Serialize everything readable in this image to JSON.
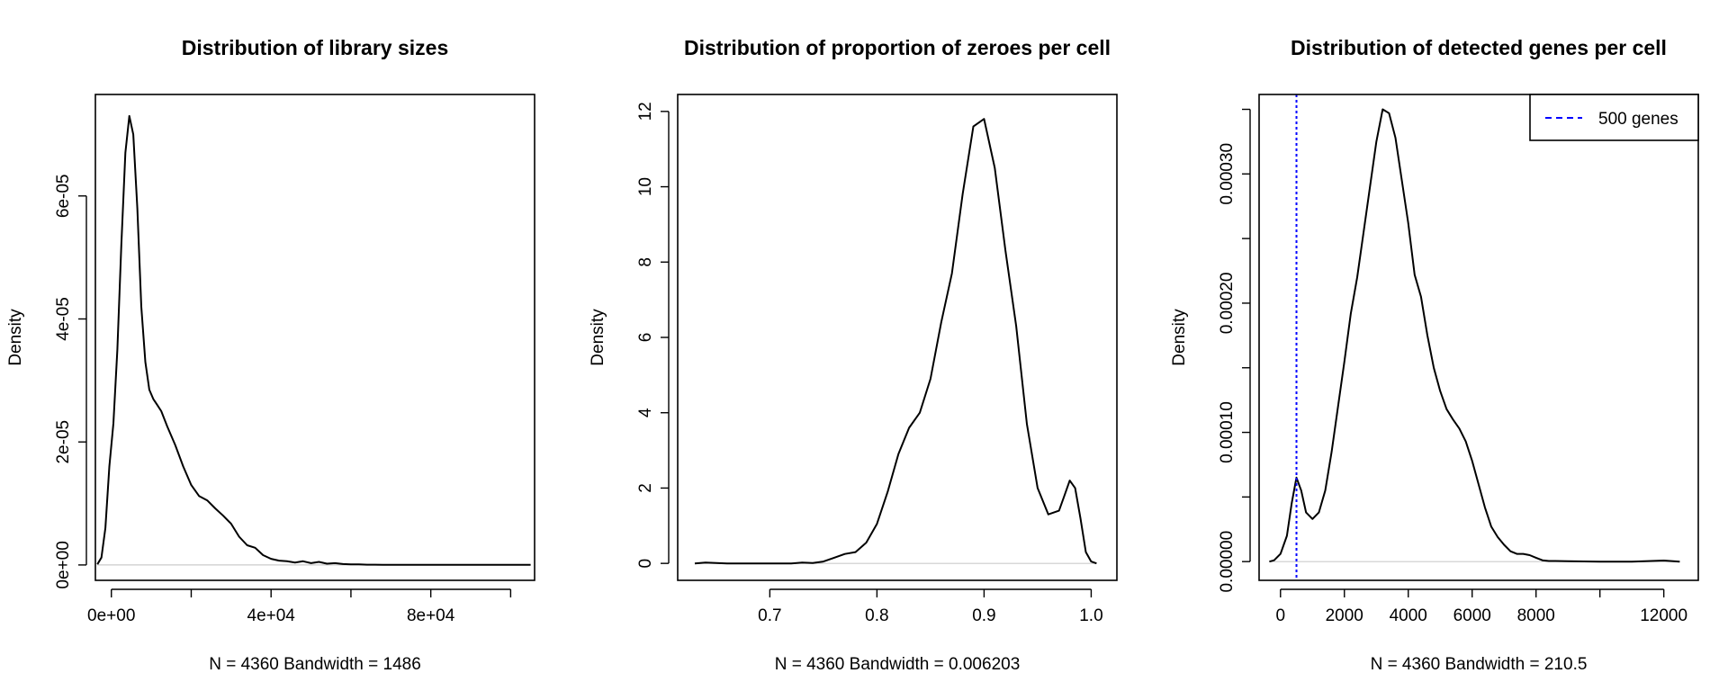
{
  "chart_data": [
    {
      "type": "line",
      "title": "Distribution of library sizes",
      "xlabel": "N = 4360   Bandwidth = 1486",
      "ylabel": "Density",
      "xlim": [
        -4000,
        106000
      ],
      "ylim": [
        -2.5e-06,
        7.65e-05
      ],
      "xticks": [
        0,
        20000,
        40000,
        60000,
        80000,
        100000
      ],
      "xtick_labels": [
        "0e+00",
        "",
        "4e+04",
        "",
        "8e+04",
        ""
      ],
      "yticks": [
        0,
        2e-05,
        4e-05,
        6e-05
      ],
      "ytick_labels": [
        "0e+00",
        "2e-05",
        "4e-05",
        "6e-05"
      ],
      "baseline": 0,
      "series": [
        {
          "color": "#000000",
          "x": [
            -3500,
            -2500,
            -1500,
            -500,
            500,
            1500,
            2500,
            3500,
            4500,
            5500,
            6500,
            7500,
            8500,
            9500,
            10500,
            11500,
            12500,
            14000,
            16000,
            18000,
            20000,
            22000,
            24000,
            26000,
            28000,
            30000,
            32000,
            34000,
            36000,
            38000,
            40000,
            42000,
            44000,
            46000,
            48000,
            50000,
            52000,
            54000,
            56000,
            58000,
            60000,
            62000,
            64000,
            66000,
            68000,
            70000,
            75000,
            80000,
            85000,
            90000,
            95000,
            100000,
            105000
          ],
          "y": [
            1e-07,
            1.2e-06,
            6e-06,
            1.6e-05,
            2.3e-05,
            3.5e-05,
            5.2e-05,
            6.7e-05,
            7.3e-05,
            7e-05,
            5.8e-05,
            4.2e-05,
            3.3e-05,
            2.85e-05,
            2.7e-05,
            2.6e-05,
            2.5e-05,
            2.25e-05,
            1.95e-05,
            1.6e-05,
            1.3e-05,
            1.12e-05,
            1.05e-05,
            9.2e-06,
            8e-06,
            6.7e-06,
            4.6e-06,
            3.2e-06,
            2.8e-06,
            1.6e-06,
            1e-06,
            7e-07,
            6e-07,
            4e-07,
            6e-07,
            3e-07,
            5e-07,
            2e-07,
            3e-07,
            1.5e-07,
            1e-07,
            1e-07,
            5e-08,
            5e-08,
            3e-08,
            3e-08,
            2e-08,
            1e-08,
            1e-08,
            1e-08,
            1e-08,
            2e-08,
            1e-08
          ]
        }
      ]
    },
    {
      "type": "line",
      "title": "Distribution of proportion of zeroes per cell",
      "xlabel": "N = 4360   Bandwidth = 0.006203",
      "ylabel": "Density",
      "xlim": [
        0.614,
        1.024
      ],
      "ylim": [
        -0.45,
        12.45
      ],
      "xticks": [
        0.7,
        0.8,
        0.9,
        1.0
      ],
      "xtick_labels": [
        "0.7",
        "0.8",
        "0.9",
        "1.0"
      ],
      "yticks": [
        0,
        2,
        4,
        6,
        8,
        10,
        12
      ],
      "ytick_labels": [
        "0",
        "2",
        "4",
        "6",
        "8",
        "10",
        "12"
      ],
      "baseline": 0,
      "series": [
        {
          "color": "#000000",
          "x": [
            0.63,
            0.64,
            0.65,
            0.66,
            0.68,
            0.7,
            0.72,
            0.73,
            0.74,
            0.75,
            0.76,
            0.77,
            0.78,
            0.79,
            0.8,
            0.81,
            0.82,
            0.83,
            0.84,
            0.85,
            0.86,
            0.87,
            0.88,
            0.89,
            0.9,
            0.91,
            0.92,
            0.93,
            0.94,
            0.95,
            0.96,
            0.97,
            0.975,
            0.98,
            0.985,
            0.99,
            0.995,
            1.0,
            1.005
          ],
          "y": [
            0.0,
            0.02,
            0.01,
            0.0,
            0.0,
            0.0,
            0.0,
            0.02,
            0.01,
            0.05,
            0.15,
            0.25,
            0.3,
            0.55,
            1.05,
            1.9,
            2.9,
            3.6,
            4.0,
            4.9,
            6.4,
            7.7,
            9.8,
            11.6,
            11.8,
            10.5,
            8.3,
            6.3,
            3.7,
            2.0,
            1.3,
            1.4,
            1.8,
            2.2,
            2.0,
            1.2,
            0.3,
            0.05,
            0.0
          ]
        }
      ]
    },
    {
      "type": "line",
      "title": "Distribution of detected genes per cell",
      "xlabel": "N = 4360   Bandwidth = 210.5",
      "ylabel": "Density",
      "xlim": [
        -670,
        13080
      ],
      "ylim": [
        -1.45e-05,
        0.0003615
      ],
      "xticks": [
        0,
        2000,
        4000,
        6000,
        8000,
        10000,
        12000
      ],
      "xtick_labels": [
        "0",
        "2000",
        "4000",
        "6000",
        "8000",
        "",
        "12000"
      ],
      "yticks": [
        0,
        5e-05,
        0.0001,
        0.00015,
        0.0002,
        0.00025,
        0.0003,
        0.00035
      ],
      "ytick_labels": [
        "0.00000",
        "",
        "0.00010",
        "",
        "0.00020",
        "",
        "0.00030",
        ""
      ],
      "baseline": 0,
      "vline": {
        "x": 500,
        "color": "#0000ff",
        "label": "500 genes"
      },
      "legend": {
        "position": "top-right",
        "entries": [
          "500 genes"
        ]
      },
      "series": [
        {
          "color": "#000000",
          "x": [
            -350,
            -200,
            0,
            200,
            350,
            500,
            650,
            800,
            1000,
            1200,
            1400,
            1600,
            1800,
            2000,
            2200,
            2400,
            2600,
            2800,
            3000,
            3200,
            3400,
            3600,
            3800,
            4000,
            4200,
            4400,
            4600,
            4800,
            5000,
            5200,
            5400,
            5600,
            5800,
            6000,
            6200,
            6400,
            6600,
            6800,
            7000,
            7200,
            7400,
            7600,
            7800,
            8000,
            8200,
            8400,
            8600,
            9000,
            10000,
            11000,
            12000,
            12500
          ],
          "y": [
            0.0,
            1e-06,
            6e-06,
            2e-05,
            4.5e-05,
            6.5e-05,
            5.5e-05,
            3.8e-05,
            3.3e-05,
            3.8e-05,
            5.5e-05,
            8.5e-05,
            0.00012,
            0.000155,
            0.000192,
            0.00022,
            0.000255,
            0.00029,
            0.000325,
            0.00035,
            0.000347,
            0.000328,
            0.000295,
            0.000262,
            0.000222,
            0.000205,
            0.000175,
            0.00015,
            0.000132,
            0.000118,
            0.00011,
            0.000103,
            9.3e-05,
            7.8e-05,
            6e-05,
            4.2e-05,
            2.7e-05,
            1.9e-05,
            1.3e-05,
            8e-06,
            6e-06,
            6e-06,
            5e-06,
            3e-06,
            1e-06,
            5e-07,
            5e-07,
            3e-07,
            0.0,
            0.0,
            8e-07,
            0.0
          ]
        }
      ]
    }
  ]
}
